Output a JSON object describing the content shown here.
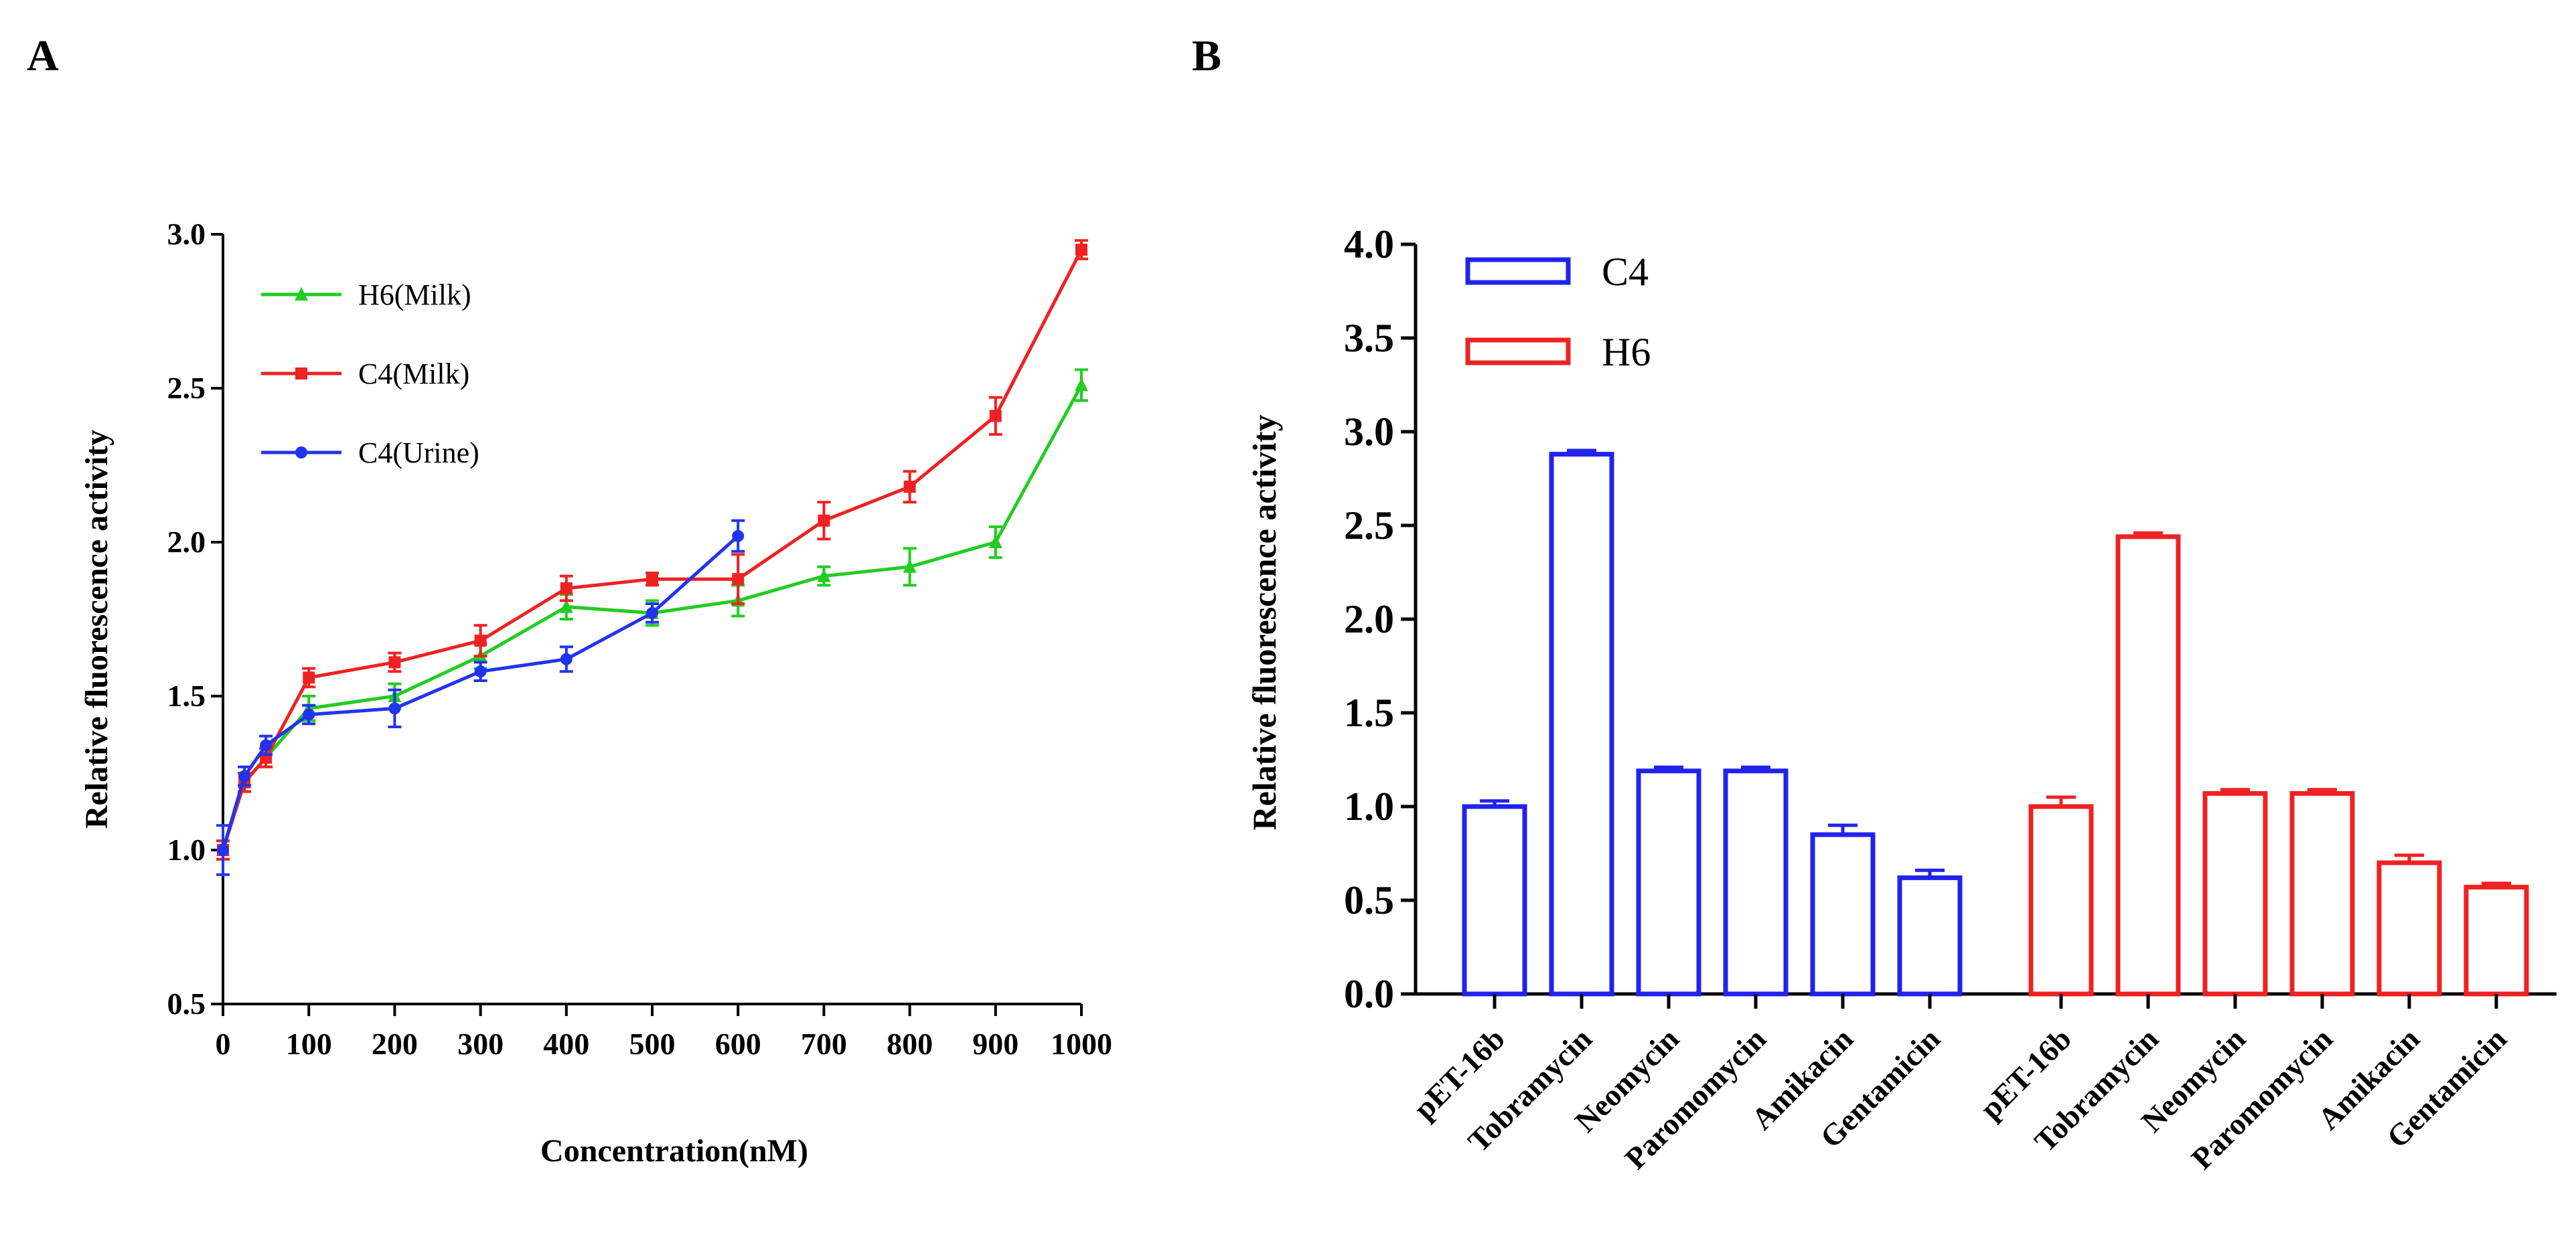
{
  "chart_data": [
    {
      "panel": "A",
      "type": "line",
      "title": "",
      "xlabel": "Concentration(nM)",
      "ylabel": "Relative fluorescence activity",
      "xlim": [
        0,
        1000
      ],
      "ylim": [
        0.5,
        3.0
      ],
      "xticks": [
        0,
        100,
        200,
        300,
        400,
        500,
        600,
        700,
        800,
        900,
        1000
      ],
      "yticks": [
        0.5,
        1.0,
        1.5,
        2.0,
        2.5,
        3.0
      ],
      "ytick_labels": [
        "0.5",
        "1.0",
        "1.5",
        "2.0",
        "2.5",
        "3.0"
      ],
      "legend_position": "top-left",
      "series": [
        {
          "name": "H6(Milk)",
          "color": "#22cc22",
          "marker": "triangle",
          "x": [
            0,
            25,
            50,
            100,
            200,
            300,
            400,
            500,
            600,
            700,
            800,
            900,
            1000
          ],
          "values": [
            1.0,
            1.22,
            1.3,
            1.46,
            1.5,
            1.63,
            1.79,
            1.77,
            1.81,
            1.89,
            1.92,
            2.0,
            2.51
          ],
          "errors": [
            0.03,
            0.03,
            0.03,
            0.04,
            0.04,
            0.04,
            0.04,
            0.04,
            0.05,
            0.03,
            0.06,
            0.05,
            0.05
          ]
        },
        {
          "name": "C4(Milk)",
          "color": "#ee2222",
          "marker": "square",
          "x": [
            0,
            25,
            50,
            100,
            200,
            300,
            400,
            500,
            600,
            700,
            800,
            900,
            1000
          ],
          "values": [
            1.0,
            1.22,
            1.3,
            1.56,
            1.61,
            1.68,
            1.85,
            1.88,
            1.88,
            2.07,
            2.18,
            2.41,
            2.95
          ],
          "errors": [
            0.03,
            0.03,
            0.03,
            0.03,
            0.03,
            0.05,
            0.04,
            0.02,
            0.08,
            0.06,
            0.05,
            0.06,
            0.03
          ]
        },
        {
          "name": "C4(Urine)",
          "color": "#2233ee",
          "marker": "circle",
          "x": [
            0,
            25,
            50,
            100,
            200,
            300,
            400,
            500,
            600
          ],
          "values": [
            1.0,
            1.24,
            1.34,
            1.44,
            1.46,
            1.58,
            1.62,
            1.77,
            2.02
          ],
          "errors": [
            0.08,
            0.03,
            0.03,
            0.03,
            0.06,
            0.03,
            0.04,
            0.03,
            0.05
          ]
        }
      ]
    },
    {
      "panel": "B",
      "type": "bar",
      "title": "",
      "xlabel": "",
      "ylabel": "Relative fluorescence activity",
      "ylim": [
        0,
        4.0
      ],
      "yticks": [
        0,
        0.5,
        1.0,
        1.5,
        2.0,
        2.5,
        3.0,
        3.5,
        4.0
      ],
      "ytick_labels": [
        "0.0",
        "0.5",
        "1.0",
        "1.5",
        "2.0",
        "2.5",
        "3.0",
        "3.5",
        "4.0"
      ],
      "legend_position": "top-left",
      "categories": [
        "pET-16b",
        "Tobramycin",
        "Neomycin",
        "Paromomycin",
        "Amikacin",
        "Gentamicin"
      ],
      "series": [
        {
          "name": "C4",
          "color": "#2222ee",
          "values": [
            1.0,
            2.88,
            1.19,
            1.19,
            0.85,
            0.62
          ],
          "errors": [
            0.03,
            0.02,
            0.02,
            0.02,
            0.05,
            0.04
          ]
        },
        {
          "name": "H6",
          "color": "#ee2222",
          "values": [
            1.0,
            2.44,
            1.07,
            1.07,
            0.7,
            0.57
          ],
          "errors": [
            0.05,
            0.02,
            0.02,
            0.02,
            0.04,
            0.02
          ]
        }
      ]
    }
  ],
  "panels": {
    "a_label": "A",
    "b_label": "B"
  }
}
